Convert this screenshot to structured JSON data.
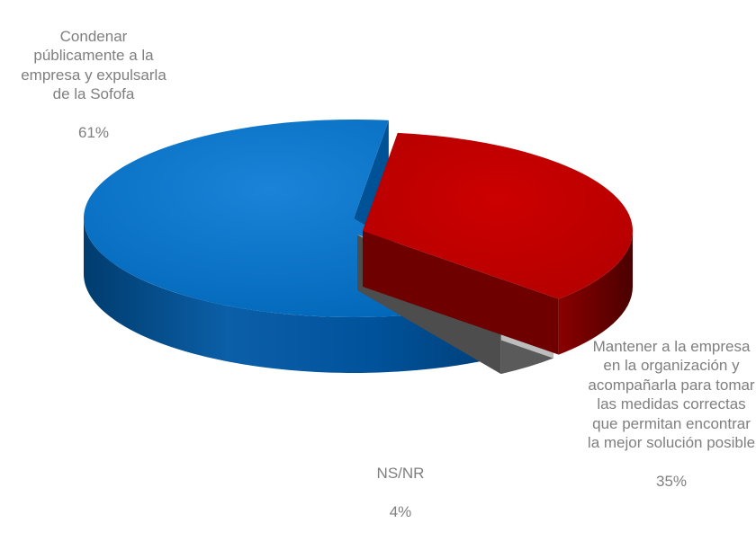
{
  "chart_data": {
    "type": "pie",
    "style": "3d-exploded",
    "slices": [
      {
        "label": "Condenar públicamente a la empresa y expulsarla de la Sofofa",
        "value": 61,
        "value_label": "61%",
        "color": "#0070C0"
      },
      {
        "label": "Mantener a la empresa en la organización y acompañarla para tomar las medidas correctas que permitan encontrar la mejor solución posible",
        "value": 35,
        "value_label": "35%",
        "color": "#C00000"
      },
      {
        "label": "NS/NR",
        "value": 4,
        "value_label": "4%",
        "color": "#A6A6A6"
      }
    ],
    "label_color": "#7F7F7F"
  }
}
